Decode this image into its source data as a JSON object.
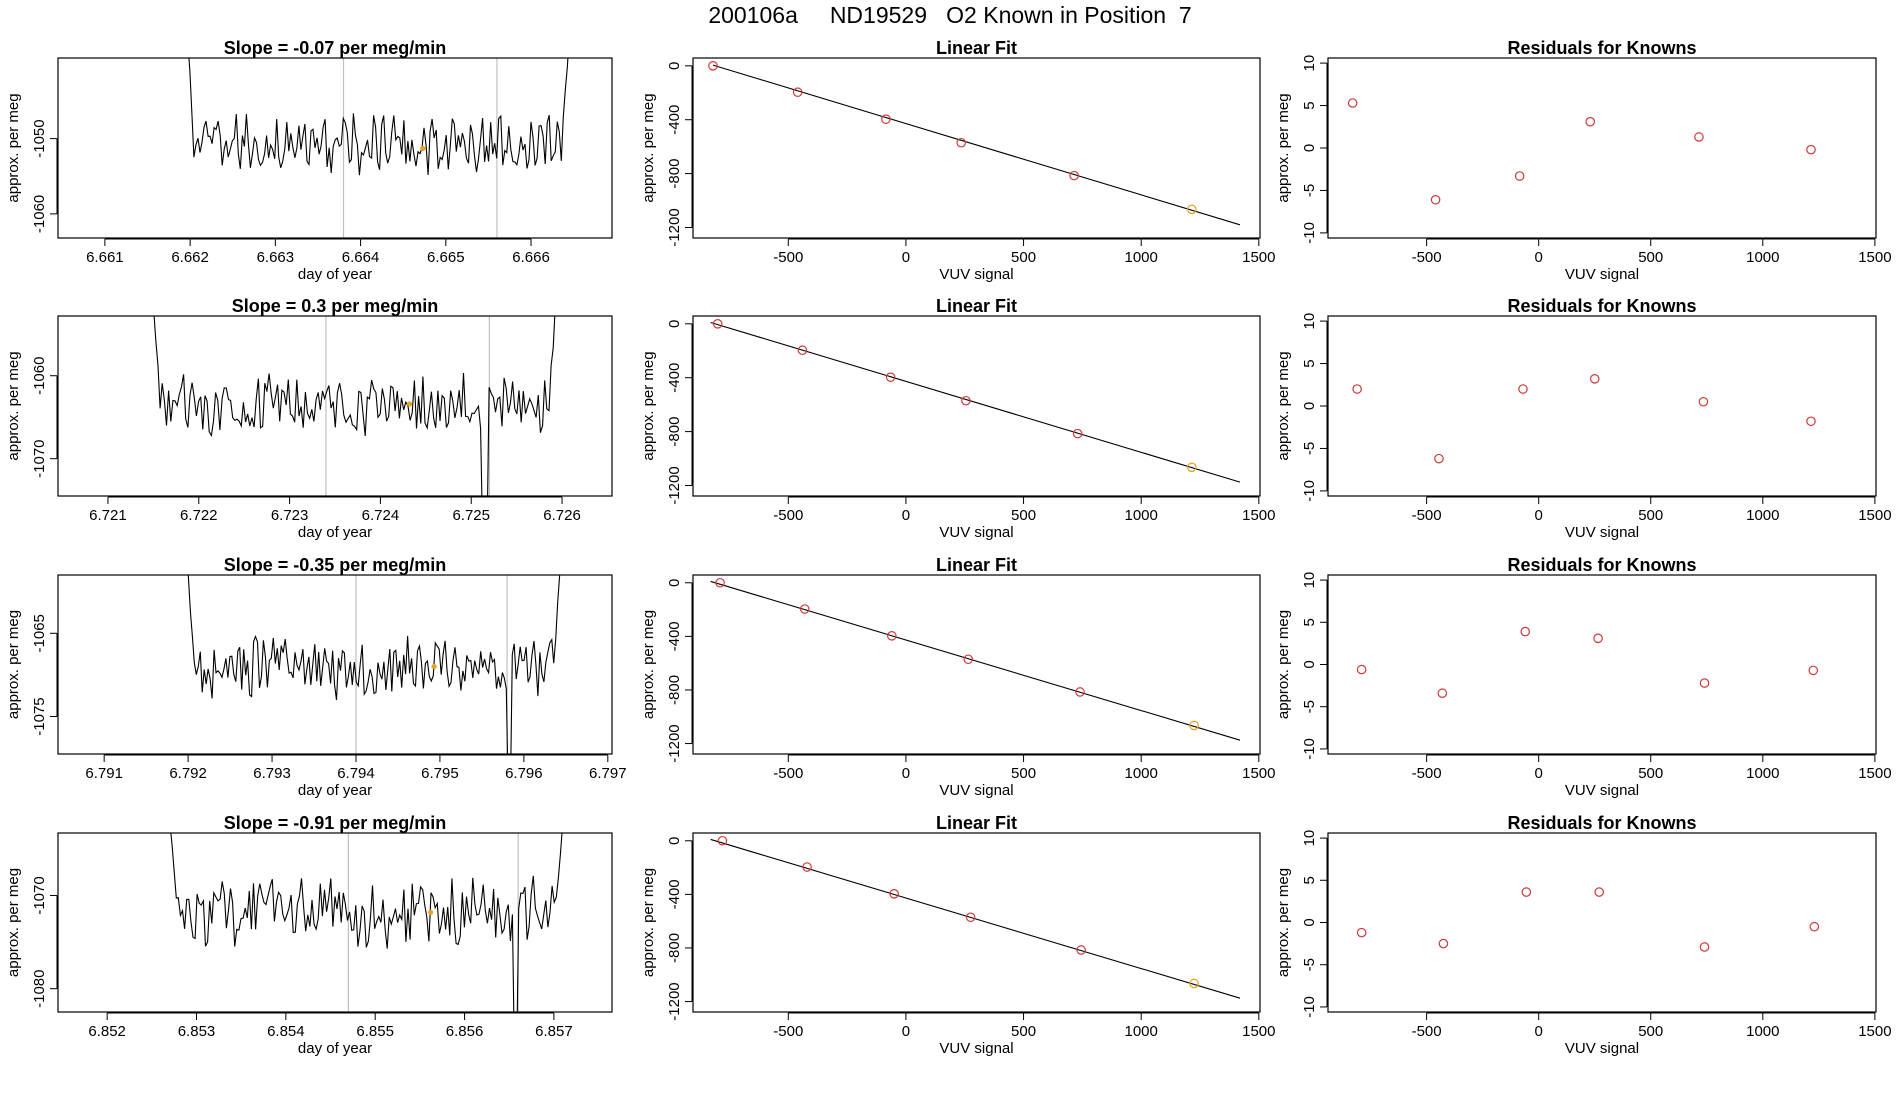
{
  "figure": {
    "title": "200106a     ND19529   O2 Known in Position  7"
  },
  "colors": {
    "trace": "#000000",
    "point": "#cd3a3a",
    "known_point": "#e8a020",
    "vline": "#c0c0c0",
    "frame": "#000000"
  },
  "chart_data": [
    {
      "type": "line",
      "row": 1,
      "panel": "time-series",
      "title": "Slope =  -0.07  per meg/min",
      "xlabel": "day of year",
      "ylabel": "approx. per meg",
      "xlim": [
        6.66045,
        6.66695
      ],
      "ylim": [
        -1063.2,
        -1039.3
      ],
      "xticks": [
        6.661,
        6.662,
        6.663,
        6.664,
        6.665,
        6.666
      ],
      "xtick_labels": [
        "6.661",
        "6.662",
        "6.663",
        "6.664",
        "6.665",
        "6.666"
      ],
      "yticks": [
        -1060,
        -1050
      ],
      "ytick_labels": [
        "-1060",
        "-1050"
      ],
      "trace_start": 6.66195,
      "trace_end": 6.66645,
      "trace_mean": -1050.8,
      "trace_amp": 3.2,
      "edge_start": -1033,
      "edge_end": -1036,
      "vlines": [
        6.6638,
        6.6656
      ],
      "marker": {
        "x": 6.66473,
        "y": -1051.3
      }
    },
    {
      "type": "scatter",
      "row": 1,
      "panel": "linear-fit",
      "title": "Linear Fit",
      "xlabel": "VUV signal",
      "ylabel": "approx. per meg",
      "xlim": [
        -905,
        1505
      ],
      "ylim": [
        -1278,
        58
      ],
      "xticks": [
        -500,
        0,
        500,
        1000,
        1500
      ],
      "xtick_labels": [
        "-500",
        "0",
        "500",
        "1000",
        "1500"
      ],
      "yticks": [
        0,
        -400,
        -800,
        -1200
      ],
      "ytick_labels": [
        "0",
        "-400",
        "-800",
        "-1200"
      ],
      "points": [
        [
          -820,
          0
        ],
        [
          -460,
          -196
        ],
        [
          -85,
          -396
        ],
        [
          235,
          -571
        ],
        [
          715,
          -815
        ],
        [
          1215,
          -1065
        ]
      ],
      "known_index": 5,
      "fit_line": [
        [
          -820,
          5
        ],
        [
          1420,
          -1180
        ]
      ]
    },
    {
      "type": "scatter",
      "row": 1,
      "panel": "residuals",
      "title": "Residuals for Knowns",
      "xlabel": "VUV signal",
      "ylabel": "approx. per meg",
      "xlim": [
        -940,
        1505
      ],
      "ylim": [
        -10.6,
        10.6
      ],
      "xticks": [
        -500,
        0,
        500,
        1000,
        1500
      ],
      "xtick_labels": [
        "-500",
        "0",
        "500",
        "1000",
        "1500"
      ],
      "yticks": [
        10,
        5,
        0,
        -5,
        -10
      ],
      "ytick_labels": [
        "10",
        "5",
        "0",
        "-5",
        "-10"
      ],
      "points": [
        [
          -830,
          5.3
        ],
        [
          -460,
          -6.1
        ],
        [
          -85,
          -3.3
        ],
        [
          230,
          3.1
        ],
        [
          715,
          1.3
        ],
        [
          1215,
          -0.2
        ]
      ]
    },
    {
      "type": "line",
      "row": 2,
      "panel": "time-series",
      "title": "Slope =  0.3  per meg/min",
      "xlabel": "day of year",
      "ylabel": "approx. per meg",
      "xlim": [
        6.72045,
        6.72655
      ],
      "ylim": [
        -1074.5,
        -1052.8
      ],
      "xticks": [
        6.721,
        6.722,
        6.723,
        6.724,
        6.725,
        6.726
      ],
      "xtick_labels": [
        "6.721",
        "6.722",
        "6.723",
        "6.724",
        "6.725",
        "6.726"
      ],
      "yticks": [
        -1070,
        -1060
      ],
      "ytick_labels": [
        "-1070",
        "-1060"
      ],
      "trace_start": 6.72148,
      "trace_end": 6.72595,
      "trace_mean": -1063.4,
      "trace_amp": 3.0,
      "edge_start": -1048,
      "edge_end": -1048,
      "vlines": [
        6.7234,
        6.7252
      ],
      "dip": {
        "x": 6.72515,
        "y": -1080
      },
      "marker": {
        "x": 6.72432,
        "y": -1063.4
      }
    },
    {
      "type": "scatter",
      "row": 2,
      "panel": "linear-fit",
      "title": "Linear Fit",
      "xlabel": "VUV signal",
      "ylabel": "approx. per meg",
      "xlim": [
        -905,
        1505
      ],
      "ylim": [
        -1278,
        58
      ],
      "xticks": [
        -500,
        0,
        500,
        1000,
        1500
      ],
      "xtick_labels": [
        "-500",
        "0",
        "500",
        "1000",
        "1500"
      ],
      "yticks": [
        0,
        -400,
        -800,
        -1200
      ],
      "ytick_labels": [
        "0",
        "-400",
        "-800",
        "-1200"
      ],
      "points": [
        [
          -800,
          0
        ],
        [
          -440,
          -196
        ],
        [
          -65,
          -396
        ],
        [
          255,
          -571
        ],
        [
          730,
          -815
        ],
        [
          1215,
          -1065
        ]
      ],
      "known_index": 5,
      "fit_line": [
        [
          -830,
          10
        ],
        [
          1420,
          -1175
        ]
      ]
    },
    {
      "type": "scatter",
      "row": 2,
      "panel": "residuals",
      "title": "Residuals for Knowns",
      "xlabel": "VUV signal",
      "ylabel": "approx. per meg",
      "xlim": [
        -940,
        1505
      ],
      "ylim": [
        -10.6,
        10.6
      ],
      "xticks": [
        -500,
        0,
        500,
        1000,
        1500
      ],
      "xtick_labels": [
        "-500",
        "0",
        "500",
        "1000",
        "1500"
      ],
      "yticks": [
        10,
        5,
        0,
        -5,
        -10
      ],
      "ytick_labels": [
        "10",
        "5",
        "0",
        "-5",
        "-10"
      ],
      "points": [
        [
          -810,
          2.0
        ],
        [
          -445,
          -6.2
        ],
        [
          -70,
          2.0
        ],
        [
          250,
          3.2
        ],
        [
          735,
          0.5
        ],
        [
          1215,
          -1.8
        ]
      ]
    },
    {
      "type": "line",
      "row": 3,
      "panel": "time-series",
      "title": "Slope =  -0.35  per meg/min",
      "xlabel": "day of year",
      "ylabel": "approx. per meg",
      "xlim": [
        6.79045,
        6.79705
      ],
      "ylim": [
        -1079.5,
        -1058.0
      ],
      "xticks": [
        6.791,
        6.792,
        6.793,
        6.794,
        6.795,
        6.796,
        6.797
      ],
      "xtick_labels": [
        "6.791",
        "6.792",
        "6.793",
        "6.794",
        "6.795",
        "6.796",
        "6.797"
      ],
      "yticks": [
        -1075,
        -1065
      ],
      "ytick_labels": [
        "-1075",
        "-1065"
      ],
      "trace_start": 6.79198,
      "trace_end": 6.79645,
      "trace_mean": -1069.0,
      "trace_amp": 3.0,
      "edge_start": -1054,
      "edge_end": -1054,
      "vlines": [
        6.794,
        6.7958
      ],
      "dip": {
        "x": 6.79582,
        "y": -1085
      },
      "marker": {
        "x": 6.79493,
        "y": -1069.0
      }
    },
    {
      "type": "scatter",
      "row": 3,
      "panel": "linear-fit",
      "title": "Linear Fit",
      "xlabel": "VUV signal",
      "ylabel": "approx. per meg",
      "xlim": [
        -905,
        1505
      ],
      "ylim": [
        -1278,
        58
      ],
      "xticks": [
        -500,
        0,
        500,
        1000,
        1500
      ],
      "xtick_labels": [
        "-500",
        "0",
        "500",
        "1000",
        "1500"
      ],
      "yticks": [
        0,
        -400,
        -800,
        -1200
      ],
      "ytick_labels": [
        "0",
        "-400",
        "-800",
        "-1200"
      ],
      "points": [
        [
          -790,
          0
        ],
        [
          -430,
          -196
        ],
        [
          -60,
          -396
        ],
        [
          265,
          -571
        ],
        [
          740,
          -815
        ],
        [
          1225,
          -1065
        ]
      ],
      "known_index": 5,
      "fit_line": [
        [
          -830,
          10
        ],
        [
          1420,
          -1175
        ]
      ]
    },
    {
      "type": "scatter",
      "row": 3,
      "panel": "residuals",
      "title": "Residuals for Knowns",
      "xlabel": "VUV signal",
      "ylabel": "approx. per meg",
      "xlim": [
        -940,
        1505
      ],
      "ylim": [
        -10.6,
        10.6
      ],
      "xticks": [
        -500,
        0,
        500,
        1000,
        1500
      ],
      "xtick_labels": [
        "-500",
        "0",
        "500",
        "1000",
        "1500"
      ],
      "yticks": [
        10,
        5,
        0,
        -5,
        -10
      ],
      "ytick_labels": [
        "10",
        "5",
        "0",
        "-5",
        "-10"
      ],
      "points": [
        [
          -790,
          -0.6
        ],
        [
          -430,
          -3.4
        ],
        [
          -60,
          3.9
        ],
        [
          265,
          3.1
        ],
        [
          740,
          -2.2
        ],
        [
          1225,
          -0.7
        ]
      ]
    },
    {
      "type": "line",
      "row": 4,
      "panel": "time-series",
      "title": "Slope =  -0.91  per meg/min",
      "xlabel": "day of year",
      "ylabel": "approx. per meg",
      "xlim": [
        6.85145,
        6.85765
      ],
      "ylim": [
        -1082.5,
        -1063.3
      ],
      "xticks": [
        6.852,
        6.853,
        6.854,
        6.855,
        6.856,
        6.857
      ],
      "xtick_labels": [
        "6.852",
        "6.853",
        "6.854",
        "6.855",
        "6.856",
        "6.857"
      ],
      "yticks": [
        -1080,
        -1070
      ],
      "ytick_labels": [
        "-1080",
        "-1070"
      ],
      "trace_start": 6.85268,
      "trace_end": 6.85712,
      "trace_mean": -1071.8,
      "trace_amp": 3.0,
      "edge_start": -1058,
      "edge_end": -1058,
      "vlines": [
        6.8547,
        6.8566
      ],
      "dip": {
        "x": 6.85657,
        "y": -1088
      },
      "marker": {
        "x": 6.85562,
        "y": -1071.8
      }
    },
    {
      "type": "scatter",
      "row": 4,
      "panel": "linear-fit",
      "title": "Linear Fit",
      "xlabel": "VUV signal",
      "ylabel": "approx. per meg",
      "xlim": [
        -905,
        1505
      ],
      "ylim": [
        -1278,
        58
      ],
      "xticks": [
        -500,
        0,
        500,
        1000,
        1500
      ],
      "xtick_labels": [
        "-500",
        "0",
        "500",
        "1000",
        "1500"
      ],
      "yticks": [
        0,
        -400,
        -800,
        -1200
      ],
      "ytick_labels": [
        "0",
        "-400",
        "-800",
        "-1200"
      ],
      "points": [
        [
          -780,
          0
        ],
        [
          -420,
          -196
        ],
        [
          -50,
          -396
        ],
        [
          275,
          -571
        ],
        [
          745,
          -815
        ],
        [
          1225,
          -1065
        ]
      ],
      "known_index": 5,
      "fit_line": [
        [
          -830,
          10
        ],
        [
          1420,
          -1175
        ]
      ]
    },
    {
      "type": "scatter",
      "row": 4,
      "panel": "residuals",
      "title": "Residuals for Knowns",
      "xlabel": "VUV signal",
      "ylabel": "approx. per meg",
      "xlim": [
        -940,
        1505
      ],
      "ylim": [
        -10.6,
        10.6
      ],
      "xticks": [
        -500,
        0,
        500,
        1000,
        1500
      ],
      "xtick_labels": [
        "-500",
        "0",
        "500",
        "1000",
        "1500"
      ],
      "yticks": [
        10,
        5,
        0,
        -5,
        -10
      ],
      "ytick_labels": [
        "10",
        "5",
        "0",
        "-5",
        "-10"
      ],
      "points": [
        [
          -790,
          -1.2
        ],
        [
          -425,
          -2.5
        ],
        [
          -55,
          3.6
        ],
        [
          270,
          3.6
        ],
        [
          740,
          -2.9
        ],
        [
          1230,
          -0.5
        ]
      ]
    }
  ]
}
